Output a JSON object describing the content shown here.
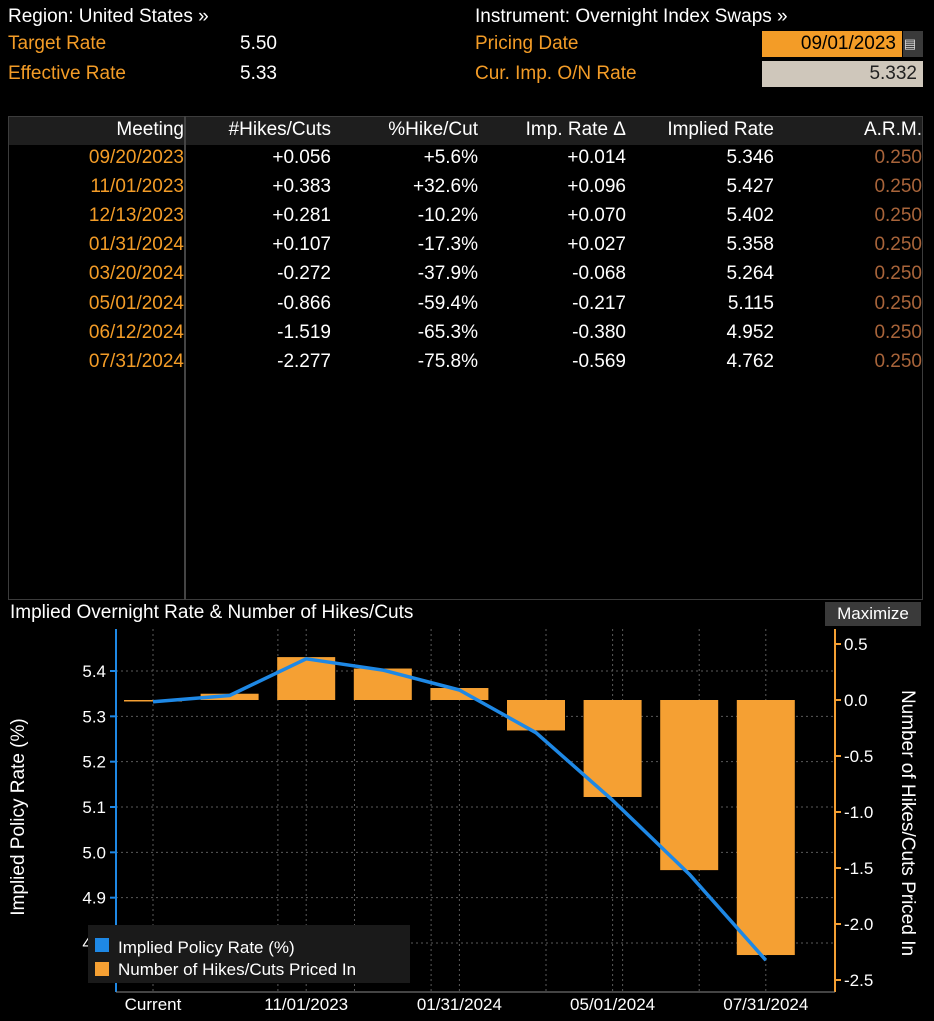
{
  "header": {
    "region_label": "Region: United States »",
    "instrument_label": "Instrument: Overnight Index Swaps »",
    "target_rate_label": "Target Rate",
    "target_rate_value": "5.50",
    "effective_rate_label": "Effective Rate",
    "effective_rate_value": "5.33",
    "pricing_date_label": "Pricing Date",
    "pricing_date_value": "09/01/2023",
    "cur_imp_label": "Cur. Imp. O/N Rate",
    "cur_imp_value": "5.332",
    "calendar_icon": "calendar-icon"
  },
  "table": {
    "columns": [
      "Meeting",
      "#Hikes/Cuts",
      "%Hike/Cut",
      "Imp. Rate Δ",
      "Implied Rate",
      "A.R.M."
    ],
    "rows": [
      [
        "09/20/2023",
        "+0.056",
        "+5.6%",
        "+0.014",
        "5.346",
        "0.250"
      ],
      [
        "11/01/2023",
        "+0.383",
        "+32.6%",
        "+0.096",
        "5.427",
        "0.250"
      ],
      [
        "12/13/2023",
        "+0.281",
        "-10.2%",
        "+0.070",
        "5.402",
        "0.250"
      ],
      [
        "01/31/2024",
        "+0.107",
        "-17.3%",
        "+0.027",
        "5.358",
        "0.250"
      ],
      [
        "03/20/2024",
        "-0.272",
        "-37.9%",
        "-0.068",
        "5.264",
        "0.250"
      ],
      [
        "05/01/2024",
        "-0.866",
        "-59.4%",
        "-0.217",
        "5.115",
        "0.250"
      ],
      [
        "06/12/2024",
        "-1.519",
        "-65.3%",
        "-0.380",
        "4.952",
        "0.250"
      ],
      [
        "07/31/2024",
        "-2.277",
        "-75.8%",
        "-0.569",
        "4.762",
        "0.250"
      ]
    ]
  },
  "chart_panel": {
    "title": "Implied Overnight Rate & Number of Hikes/Cuts",
    "maximize_label": "Maximize"
  },
  "chart_data": {
    "type": "bar",
    "categories": [
      "Current",
      "09/20/2023",
      "11/01/2023",
      "12/13/2023",
      "01/31/2024",
      "03/20/2024",
      "05/01/2024",
      "06/12/2024",
      "07/31/2024"
    ],
    "x_tick_labels": [
      "Current",
      "11/01/2023",
      "01/31/2024",
      "05/01/2024",
      "07/31/2024"
    ],
    "series": [
      {
        "name": "Implied Policy Rate (%)",
        "kind": "line",
        "axis": "left",
        "color": "#1e88e5",
        "values": [
          5.332,
          5.346,
          5.427,
          5.402,
          5.358,
          5.264,
          5.115,
          4.952,
          4.762
        ]
      },
      {
        "name": "Number of Hikes/Cuts Priced In",
        "kind": "bar",
        "axis": "right",
        "color": "#f5a033",
        "values": [
          0.0,
          0.056,
          0.383,
          0.281,
          0.107,
          -0.272,
          -0.866,
          -1.519,
          -2.277
        ]
      }
    ],
    "ylabel_left": "Implied Policy Rate (%)",
    "ylabel_right": "Number of Hikes/Cuts Priced In",
    "ylim_left": [
      4.73,
      5.47
    ],
    "yticks_left": [
      "4.8",
      "4.9",
      "5.0",
      "5.1",
      "5.2",
      "5.3",
      "5.4"
    ],
    "ylim_right": [
      -2.5,
      0.55
    ],
    "yticks_right": [
      "-2.5",
      "-2.0",
      "-1.5",
      "-1.0",
      "-0.5",
      "0.0",
      "0.5"
    ],
    "grid": true,
    "legend_position": "bottom-left",
    "axis_color_left": "#1e88e5",
    "axis_color_right": "#f5a033"
  }
}
